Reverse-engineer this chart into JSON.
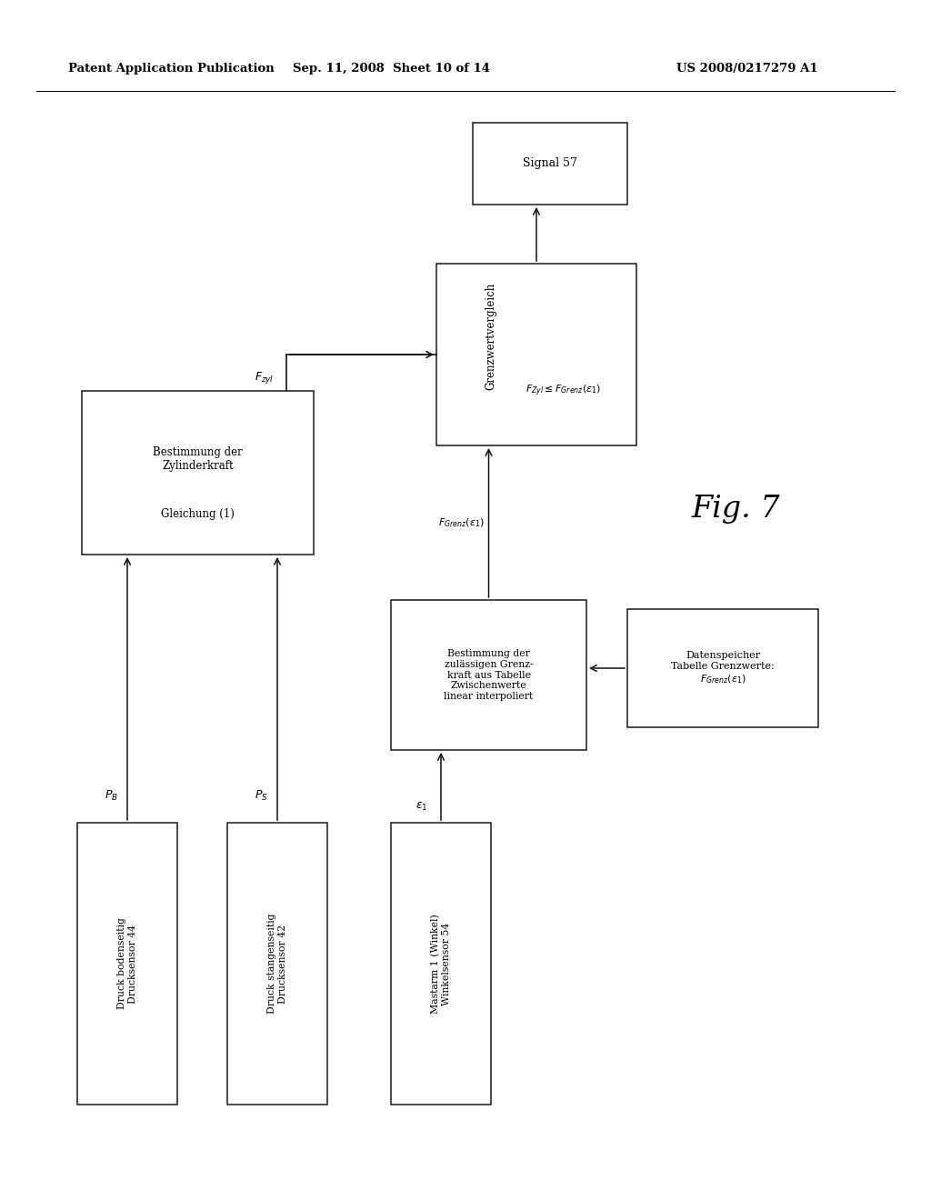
{
  "header_left": "Patent Application Publication",
  "header_center": "Sep. 11, 2008  Sheet 10 of 14",
  "header_right": "US 2008/0217279 A1",
  "fig_label": "Fig. 7",
  "background": "#ffffff"
}
